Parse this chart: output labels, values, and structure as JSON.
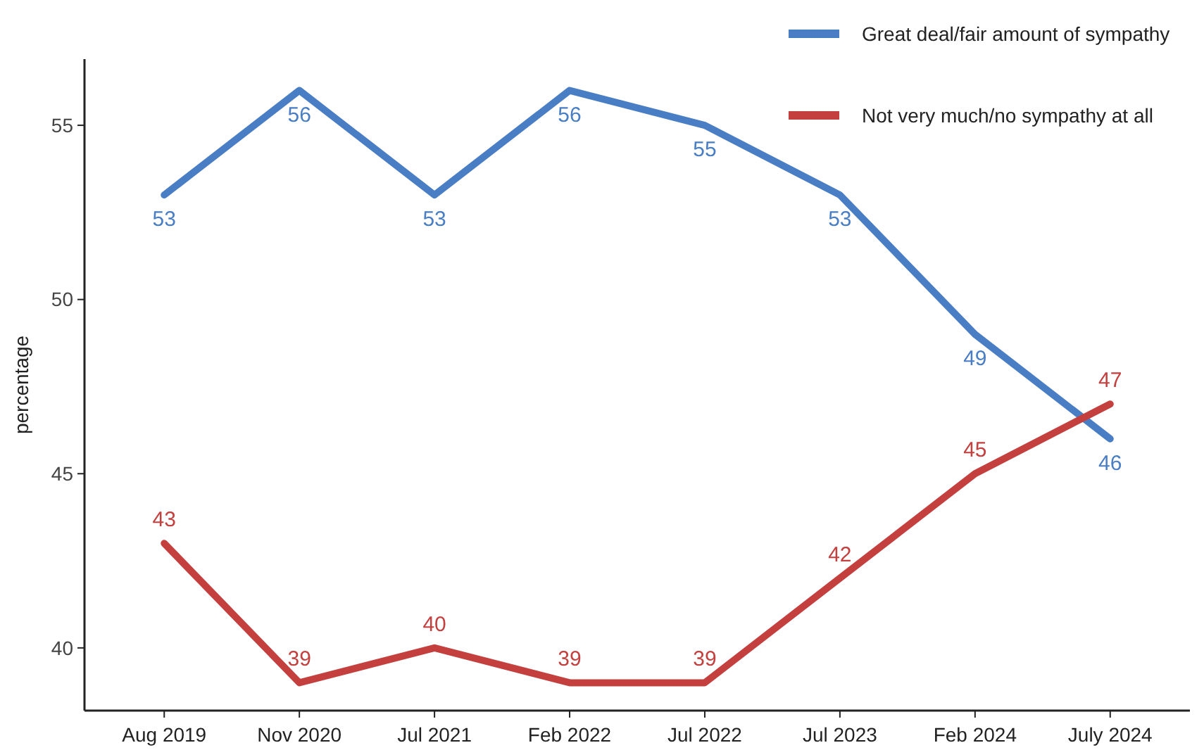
{
  "chart_data": {
    "type": "line",
    "ylabel": "percentage",
    "categories": [
      "Aug 2019",
      "Nov 2020",
      "Jul 2021",
      "Feb 2022",
      "Jul 2022",
      "Jul 2023",
      "Feb 2024",
      "July 2024"
    ],
    "series": [
      {
        "name": "Great deal/fair amount of sympathy",
        "color": "#4a7ec4",
        "values": [
          53,
          56,
          53,
          56,
          55,
          53,
          49,
          46
        ]
      },
      {
        "name": "Not very much/no sympathy at all",
        "color": "#c4403f",
        "values": [
          43,
          39,
          40,
          39,
          39,
          42,
          45,
          47
        ]
      }
    ],
    "ylim": [
      38.2,
      56.9
    ],
    "yticks": [
      40,
      45,
      50,
      55
    ],
    "grid": false,
    "legend": "top right",
    "data_labels": true,
    "marker": "none",
    "line_style": "solid"
  }
}
